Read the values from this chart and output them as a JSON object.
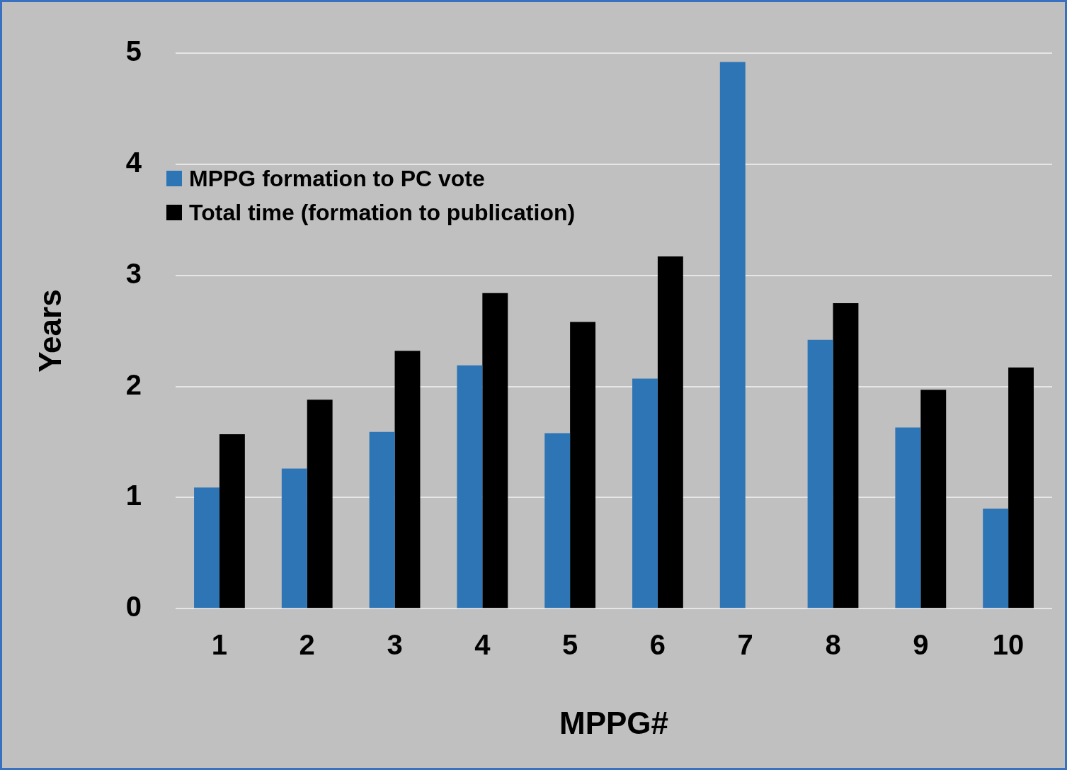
{
  "chart_data": {
    "type": "bar",
    "xlabel": "MPPG#",
    "ylabel": "Years",
    "categories": [
      "1",
      "2",
      "3",
      "4",
      "5",
      "6",
      "7",
      "8",
      "9",
      "10"
    ],
    "series": [
      {
        "name": "MPPG formation to PC vote",
        "color": "#2e75b6",
        "values": [
          1.09,
          1.26,
          1.59,
          2.19,
          1.58,
          2.07,
          4.92,
          2.42,
          1.63,
          0.9
        ]
      },
      {
        "name": "Total time (formation to publication)",
        "color": "#000000",
        "values": [
          1.57,
          1.88,
          2.32,
          2.84,
          2.58,
          3.17,
          null,
          2.75,
          1.97,
          2.17
        ]
      }
    ],
    "ylim": [
      0,
      5
    ],
    "yticks": [
      0,
      1,
      2,
      3,
      4,
      5
    ],
    "grid": "y",
    "legend": "top left"
  }
}
